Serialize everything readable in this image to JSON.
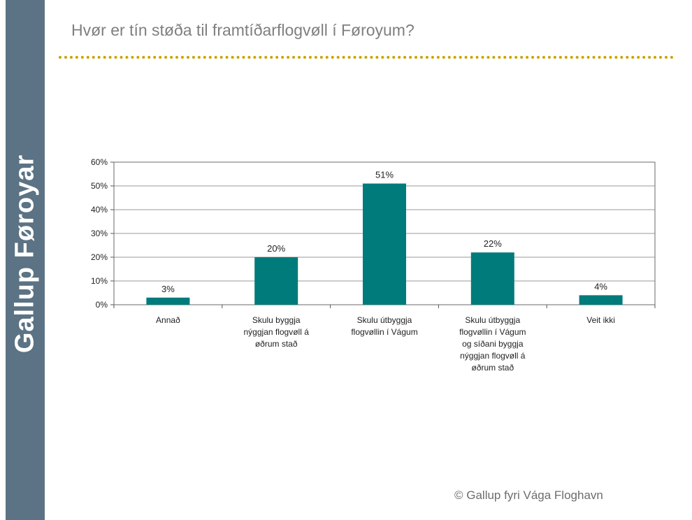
{
  "brand": "Gallup Føroyar",
  "title": "Hvør er tín støða til framtíðarflogvøll í Føroyum?",
  "footer": "© Gallup fyri Vága Floghavn",
  "colors": {
    "bar": "#007b7b",
    "sidebar": "#5b7384",
    "rule": "#c9a300"
  },
  "chart_data": {
    "type": "bar",
    "title": "",
    "xlabel": "",
    "ylabel": "",
    "ylim": [
      0,
      60
    ],
    "yticks": [
      "0%",
      "10%",
      "20%",
      "30%",
      "40%",
      "50%",
      "60%"
    ],
    "grid": true,
    "categories": [
      [
        "Annað"
      ],
      [
        "Skulu byggja",
        "nýggjan flogvøll á",
        "øðrum stað"
      ],
      [
        "Skulu útbyggja",
        "flogvøllin í Vágum"
      ],
      [
        "Skulu útbyggja",
        "flogvøllin í Vágum",
        "og síðani byggja",
        "nýggjan flogvøll á",
        "øðrum stað"
      ],
      [
        "Veit ikki"
      ]
    ],
    "values": [
      3,
      20,
      51,
      22,
      4
    ],
    "labels": [
      "3%",
      "20%",
      "51%",
      "22%",
      "4%"
    ]
  }
}
